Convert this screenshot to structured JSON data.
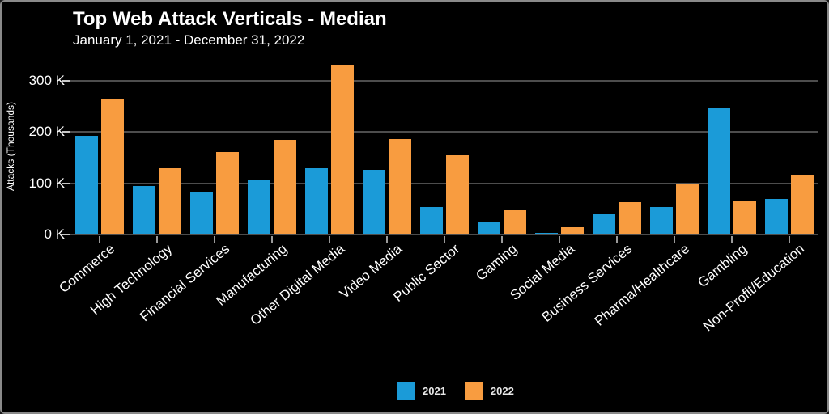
{
  "figure": {
    "title": "Top Web Attack Verticals - Median",
    "subtitle": "January 1, 2021 - December 31, 2022"
  },
  "chart_data": {
    "type": "bar",
    "title": "Top Web Attack Verticals - Median",
    "subtitle": "January 1, 2021 - December 31, 2022",
    "xlabel": "",
    "ylabel": "Attacks (Thousands)",
    "unit": "K",
    "ylim": [
      0,
      344
    ],
    "grid": "horizontal",
    "legend_position": "bottom-center",
    "background_color": "#000000",
    "grid_color": "#4d4d4d",
    "yticks": [
      {
        "value": 0,
        "label": "0 K"
      },
      {
        "value": 100,
        "label": "100 K"
      },
      {
        "value": 200,
        "label": "200 K"
      },
      {
        "value": 300,
        "label": "300 K"
      }
    ],
    "categories": [
      "Commerce",
      "High Technology",
      "Financial Services",
      "Manufacturing",
      "Other Digital Media",
      "Video Media",
      "Public Sector",
      "Gaming",
      "Social Media",
      "Business Services",
      "Pharma/Healthcare",
      "Gambling",
      "Non-Profit/Education"
    ],
    "series": [
      {
        "name": "2021",
        "color": "#1b9bd8",
        "values": [
          192,
          94,
          82,
          105,
          130,
          127,
          53,
          25,
          3,
          40,
          54,
          248,
          69
        ]
      },
      {
        "name": "2022",
        "color": "#f89c40",
        "values": [
          265,
          130,
          161,
          185,
          331,
          186,
          154,
          48,
          15,
          63,
          98,
          65,
          117
        ]
      }
    ]
  }
}
